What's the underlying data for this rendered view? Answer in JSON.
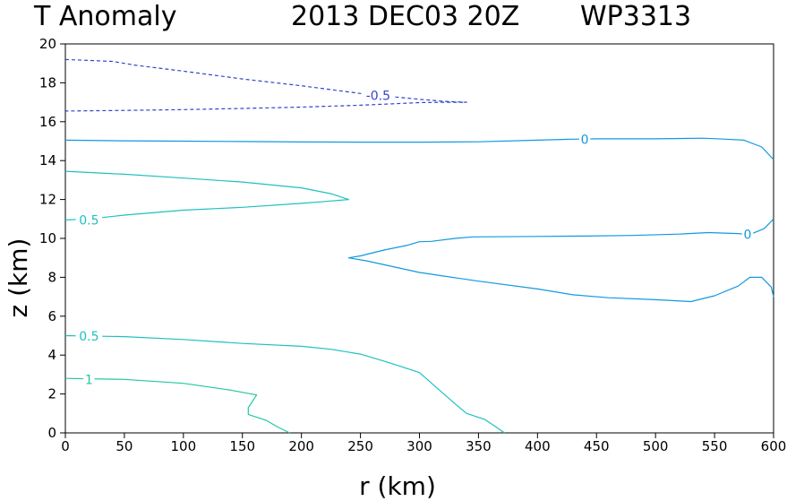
{
  "header": {
    "title": "T Anomaly",
    "datetime": "2013 DEC03 20Z",
    "storm_id": "WP3313"
  },
  "chart_data": {
    "type": "contour",
    "xlabel": "r (km)",
    "ylabel": "z (km)",
    "xlim": [
      0,
      600
    ],
    "ylim": [
      0,
      20
    ],
    "x_ticks": [
      0,
      50,
      100,
      150,
      200,
      250,
      300,
      350,
      400,
      450,
      500,
      550,
      600
    ],
    "y_ticks": [
      0,
      2,
      4,
      6,
      8,
      10,
      12,
      14,
      16,
      18,
      20
    ],
    "grid": false,
    "colors": {
      "negative": "#3344cc",
      "zero": "#1199e0",
      "positive": "#20c0c0",
      "strong_positive": "#20c8a0"
    },
    "contours": [
      {
        "level": "-0.5",
        "kind": "negative",
        "dashed": true,
        "label": {
          "text": "-0.5",
          "at": [
            265,
            17.35
          ]
        },
        "points": [
          [
            0,
            19.2
          ],
          [
            20,
            19.15
          ],
          [
            40,
            19.1
          ],
          [
            60,
            18.9
          ],
          [
            100,
            18.6
          ],
          [
            150,
            18.2
          ],
          [
            200,
            17.85
          ],
          [
            250,
            17.45
          ],
          [
            275,
            17.3
          ],
          [
            300,
            17.15
          ],
          [
            320,
            17.05
          ],
          [
            340,
            17.0
          ],
          [
            320,
            17.0
          ],
          [
            300,
            16.98
          ],
          [
            250,
            16.85
          ],
          [
            200,
            16.75
          ],
          [
            150,
            16.68
          ],
          [
            100,
            16.62
          ],
          [
            50,
            16.58
          ],
          [
            0,
            16.55
          ]
        ]
      },
      {
        "level": "0",
        "kind": "zero",
        "dashed": false,
        "label": {
          "text": "0",
          "at": [
            440,
            15.1
          ]
        },
        "points": [
          [
            0,
            15.05
          ],
          [
            50,
            15.02
          ],
          [
            100,
            15.0
          ],
          [
            150,
            14.98
          ],
          [
            200,
            14.96
          ],
          [
            250,
            14.95
          ],
          [
            300,
            14.95
          ],
          [
            350,
            14.97
          ],
          [
            400,
            15.05
          ],
          [
            430,
            15.1
          ],
          [
            450,
            15.12
          ],
          [
            500,
            15.12
          ],
          [
            540,
            15.15
          ],
          [
            560,
            15.1
          ],
          [
            575,
            15.05
          ],
          [
            590,
            14.7
          ],
          [
            600,
            14.05
          ]
        ]
      },
      {
        "level": "0",
        "kind": "zero",
        "dashed": false,
        "label": {
          "text": "0",
          "at": [
            578,
            10.2
          ]
        },
        "points": [
          [
            600,
            11.0
          ],
          [
            592,
            10.5
          ],
          [
            580,
            10.2
          ],
          [
            570,
            10.25
          ],
          [
            545,
            10.3
          ],
          [
            520,
            10.22
          ],
          [
            480,
            10.15
          ],
          [
            440,
            10.12
          ],
          [
            400,
            10.1
          ],
          [
            345,
            10.08
          ],
          [
            330,
            10.0
          ],
          [
            310,
            9.85
          ],
          [
            300,
            9.83
          ],
          [
            290,
            9.65
          ],
          [
            270,
            9.4
          ],
          [
            250,
            9.1
          ],
          [
            240,
            9.0
          ],
          [
            255,
            8.85
          ],
          [
            300,
            8.25
          ],
          [
            350,
            7.8
          ],
          [
            400,
            7.4
          ],
          [
            430,
            7.1
          ],
          [
            460,
            6.95
          ],
          [
            500,
            6.85
          ],
          [
            530,
            6.75
          ],
          [
            550,
            7.05
          ],
          [
            570,
            7.55
          ],
          [
            580,
            8.0
          ],
          [
            590,
            8.0
          ],
          [
            598,
            7.5
          ],
          [
            600,
            7.0
          ]
        ]
      },
      {
        "level": "0.5",
        "kind": "positive",
        "dashed": false,
        "label": {
          "text": "0.5",
          "at": [
            20,
            10.95
          ]
        },
        "points": [
          [
            0,
            13.45
          ],
          [
            50,
            13.3
          ],
          [
            100,
            13.1
          ],
          [
            150,
            12.9
          ],
          [
            200,
            12.6
          ],
          [
            225,
            12.3
          ],
          [
            240,
            12.0
          ],
          [
            220,
            11.9
          ],
          [
            200,
            11.8
          ],
          [
            150,
            11.6
          ],
          [
            100,
            11.45
          ],
          [
            50,
            11.2
          ],
          [
            20,
            11.0
          ],
          [
            0,
            10.95
          ]
        ]
      },
      {
        "level": "0.5",
        "kind": "positive",
        "dashed": false,
        "label": {
          "text": "0.5",
          "at": [
            20,
            4.98
          ]
        },
        "points": [
          [
            0,
            5.0
          ],
          [
            50,
            4.95
          ],
          [
            100,
            4.8
          ],
          [
            150,
            4.6
          ],
          [
            200,
            4.45
          ],
          [
            225,
            4.3
          ],
          [
            250,
            4.05
          ],
          [
            275,
            3.6
          ],
          [
            300,
            3.1
          ],
          [
            315,
            2.3
          ],
          [
            330,
            1.5
          ],
          [
            340,
            1.0
          ],
          [
            355,
            0.7
          ],
          [
            365,
            0.3
          ],
          [
            372,
            0.0
          ]
        ]
      },
      {
        "level": "1",
        "kind": "strong_positive",
        "dashed": false,
        "label": {
          "text": "1",
          "at": [
            20,
            2.75
          ]
        },
        "points": [
          [
            0,
            2.8
          ],
          [
            50,
            2.75
          ],
          [
            100,
            2.55
          ],
          [
            140,
            2.2
          ],
          [
            162,
            1.95
          ],
          [
            155,
            1.3
          ],
          [
            155,
            0.95
          ],
          [
            170,
            0.65
          ],
          [
            180,
            0.3
          ],
          [
            190,
            0.0
          ]
        ]
      }
    ]
  }
}
